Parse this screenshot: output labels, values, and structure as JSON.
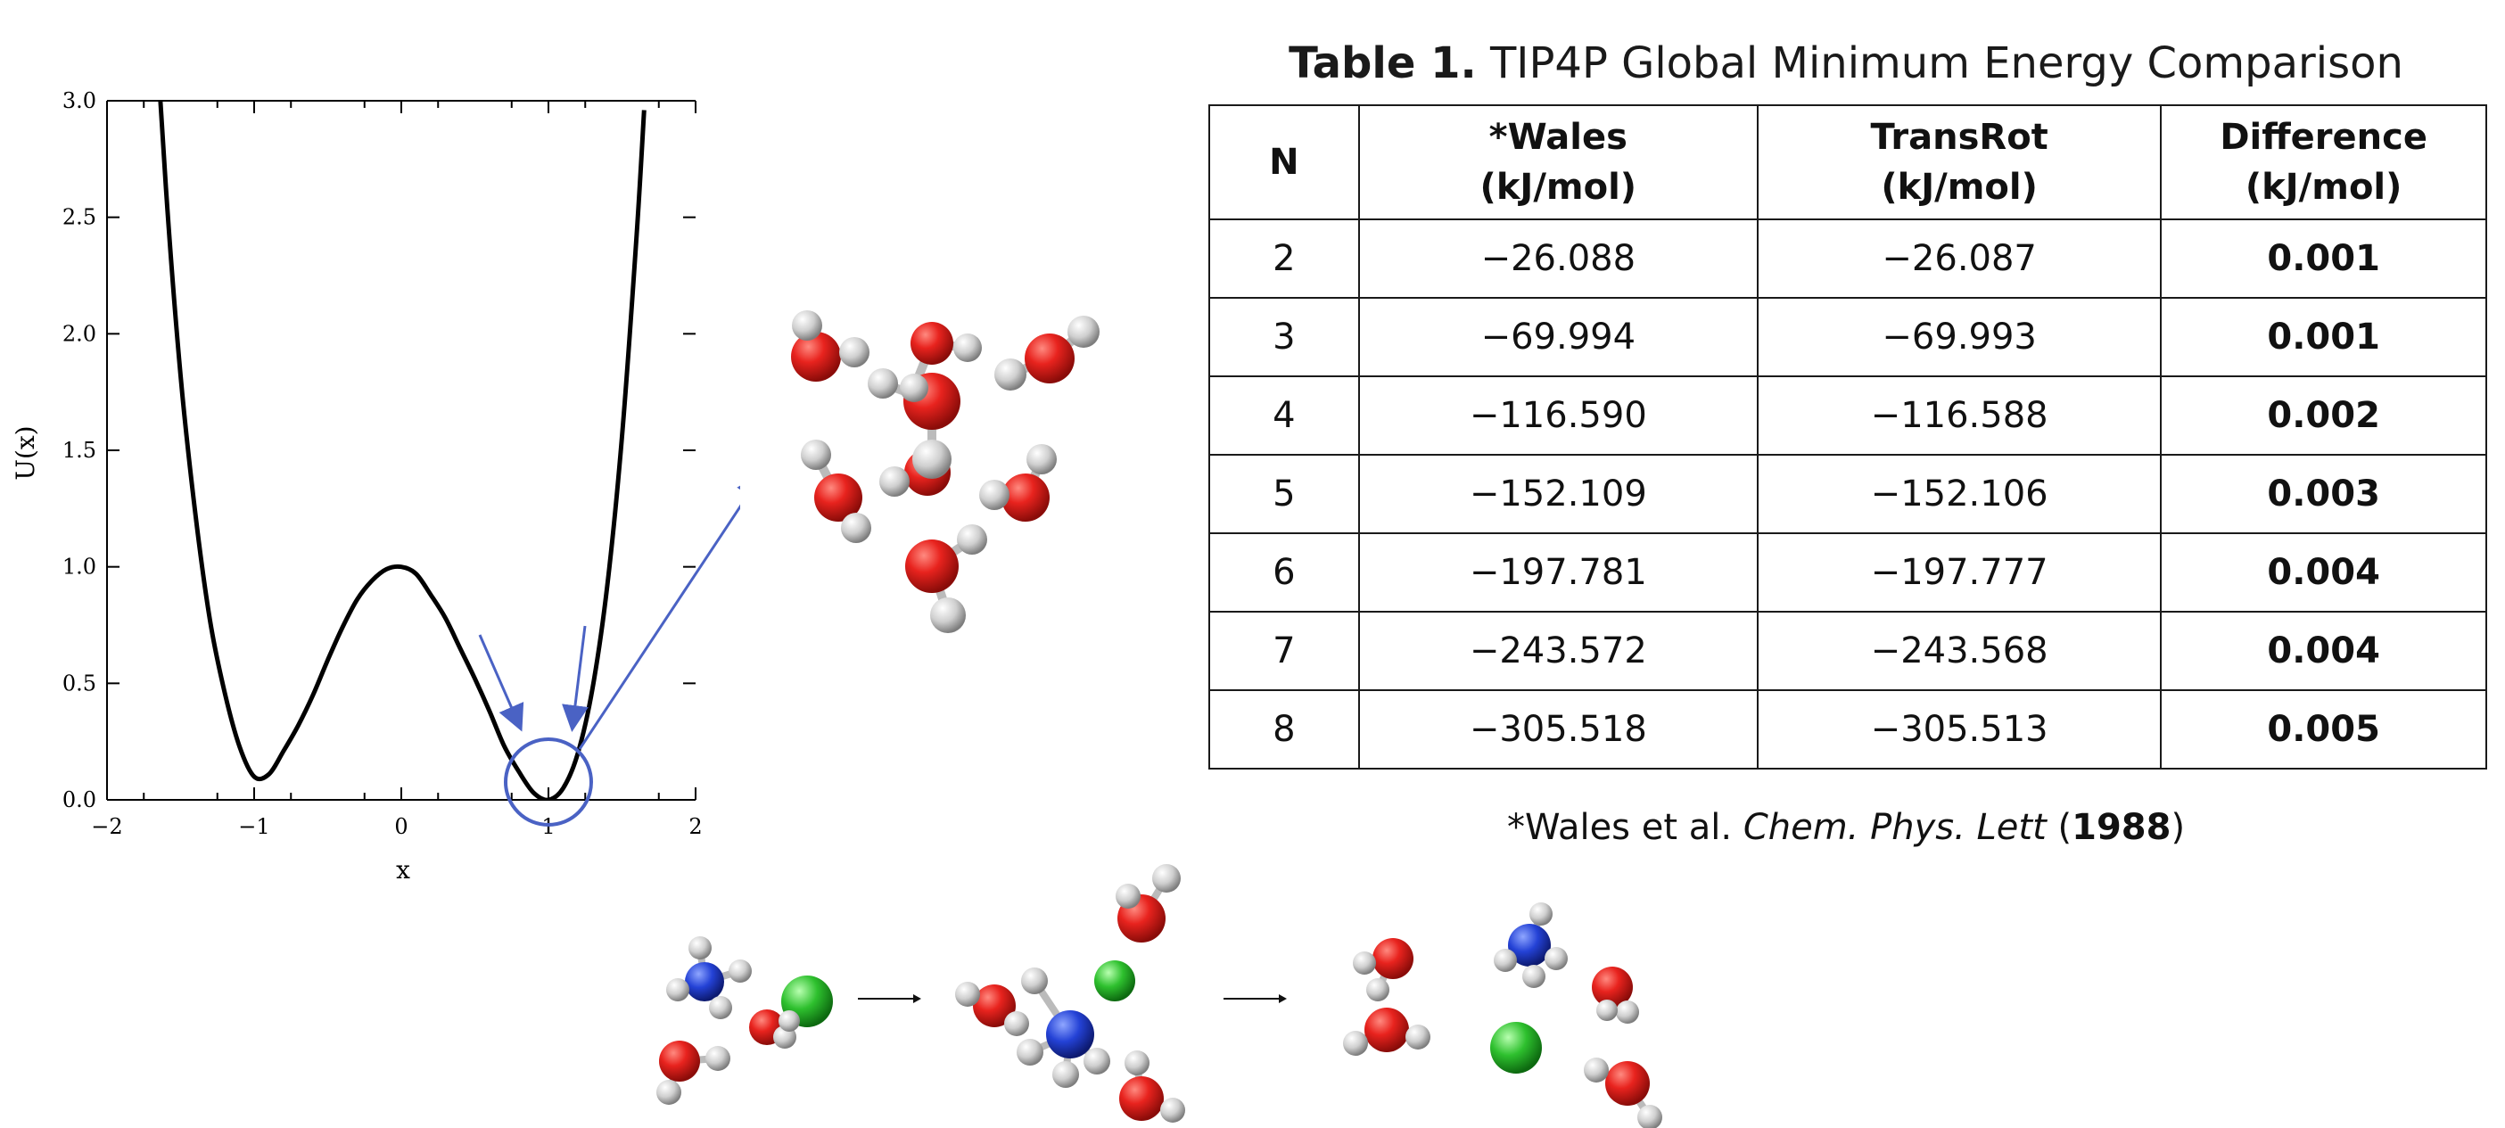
{
  "chart_data": {
    "type": "line",
    "xlabel": "x",
    "ylabel": "U(x)",
    "xlim": [
      -2,
      2
    ],
    "ylim": [
      0,
      3
    ],
    "x_ticks": [
      "−2",
      "−1",
      "0",
      "1",
      "2"
    ],
    "y_ticks": [
      "0.0",
      "0.5",
      "1.0",
      "1.5",
      "2.0",
      "2.5",
      "3.0"
    ],
    "series": [
      {
        "x": [
          -1.75,
          -1.6,
          -1.5,
          -1.4,
          -1.3,
          -1.2,
          -1.1,
          -1.0,
          -0.9,
          -0.8,
          -0.7,
          -0.6,
          -0.5,
          -0.4,
          -0.3,
          -0.2,
          -0.1,
          0.0,
          0.1,
          0.2,
          0.3,
          0.4,
          0.5,
          0.6,
          0.7,
          0.8,
          0.9,
          1.0,
          1.1,
          1.2,
          1.3,
          1.4,
          1.5,
          1.6,
          1.65
        ],
        "y": [
          4.15,
          2.63,
          1.82,
          1.23,
          0.77,
          0.46,
          0.23,
          0.1,
          0.11,
          0.21,
          0.32,
          0.45,
          0.6,
          0.74,
          0.86,
          0.94,
          0.99,
          1.0,
          0.97,
          0.88,
          0.78,
          0.65,
          0.52,
          0.38,
          0.23,
          0.12,
          0.03,
          0.0,
          0.05,
          0.2,
          0.48,
          0.92,
          1.56,
          2.43,
          2.96
        ]
      }
    ],
    "annotation": "circled global minimum near x = 1 with arrows pointing to it and to the water cluster structure",
    "grid": false
  },
  "table": {
    "title_bold": "Table 1.",
    "title_rest": "TIP4P Global Minimum Energy Comparison",
    "headers": [
      {
        "line1": "N",
        "line2": ""
      },
      {
        "line1": "*Wales",
        "line2": "(kJ/mol)"
      },
      {
        "line1": "TransRot",
        "line2": "(kJ/mol)"
      },
      {
        "line1": "Difference",
        "line2": "(kJ/mol)"
      }
    ],
    "rows": [
      {
        "n": "2",
        "wales": "−26.088",
        "transrot": "−26.087",
        "diff": "0.001"
      },
      {
        "n": "3",
        "wales": "−69.994",
        "transrot": "−69.993",
        "diff": "0.001"
      },
      {
        "n": "4",
        "wales": "−116.590",
        "transrot": "−116.588",
        "diff": "0.002"
      },
      {
        "n": "5",
        "wales": "−152.109",
        "transrot": "−152.106",
        "diff": "0.003"
      },
      {
        "n": "6",
        "wales": "−197.781",
        "transrot": "−197.777",
        "diff": "0.004"
      },
      {
        "n": "7",
        "wales": "−243.572",
        "transrot": "−243.568",
        "diff": "0.004"
      },
      {
        "n": "8",
        "wales": "−305.518",
        "transrot": "−305.513",
        "diff": "0.005"
      }
    ]
  },
  "footnote": {
    "prefix": "*Wales et al.",
    "journal": "Chem. Phys. Lett",
    "year_open": "(",
    "year": "1988",
    "year_close": ")"
  },
  "colors": {
    "oxygen": "#e8231e",
    "hydrogen": "#cfcfcf",
    "nitrogen": "#2442d6",
    "chlorine": "#2ec02e",
    "annotation": "#4a62c4"
  }
}
